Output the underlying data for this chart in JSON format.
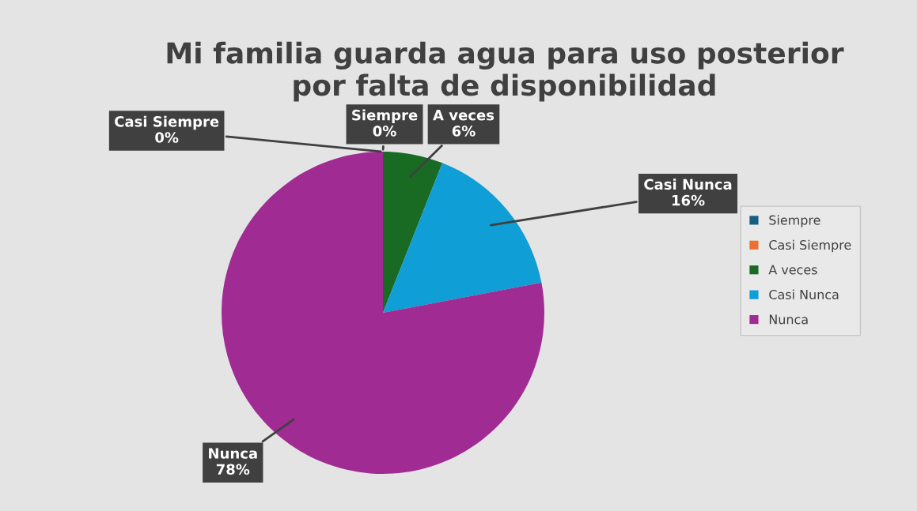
{
  "chart_data": {
    "type": "pie",
    "title": "Mi familia guarda agua para uso posterior\npor falta de disponibilidad",
    "categories": [
      "Siempre",
      "Casi Siempre",
      "A veces",
      "Casi Nunca",
      "Nunca"
    ],
    "values": [
      0,
      0,
      6,
      16,
      78
    ],
    "value_labels": [
      "0%",
      "0%",
      "6%",
      "16%",
      "78%"
    ],
    "colors": [
      "#156082",
      "#e97132",
      "#196b24",
      "#0f9ed5",
      "#a02b93"
    ],
    "legend": "right"
  }
}
